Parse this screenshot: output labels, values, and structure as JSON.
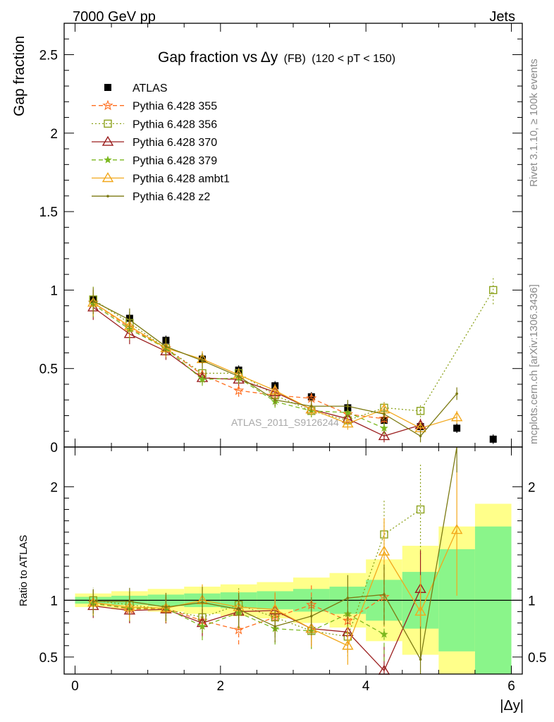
{
  "header": {
    "left": "7000 GeV pp",
    "right": "Jets"
  },
  "side": {
    "rivet": "Rivet 3.1.10, ≥ 100k events",
    "mcplots": "mcplots.cern.ch [arXiv:1306.3436]"
  },
  "watermark": "ATLAS_2011_S9126244",
  "chart_data": [
    {
      "type": "line",
      "title_main": "Gap fraction vs",
      "title_var": "Δy",
      "title_tag": "(FB)",
      "title_cut": "(120 < pT < 150)",
      "ylabel": "Gap fraction",
      "xlim": [
        -0.15,
        6.15
      ],
      "ylim": [
        0,
        2.7
      ],
      "yticks": [
        "0",
        "0.5",
        "1",
        "1.5",
        "2",
        "2.5"
      ],
      "x": [
        0.25,
        0.75,
        1.25,
        1.75,
        2.25,
        2.75,
        3.25,
        3.75,
        4.25,
        4.75,
        5.25,
        5.75
      ],
      "series": [
        {
          "name": "ATLAS",
          "color": "#000000",
          "marker": "square-filled",
          "dash": "none",
          "values": [
            0.94,
            0.82,
            0.68,
            0.56,
            0.49,
            0.39,
            0.32,
            0.25,
            0.17,
            0.13,
            0.12,
            0.05
          ]
        },
        {
          "name": "Pythia 6.428 355",
          "color": "#ff6e1f",
          "marker": "star",
          "dash": "dashed",
          "values": [
            0.92,
            0.76,
            0.63,
            0.46,
            0.36,
            0.33,
            0.31,
            0.21,
            0.18,
            null,
            null,
            null
          ]
        },
        {
          "name": "Pythia 6.428 356",
          "color": "#8ba11a",
          "marker": "square-open",
          "dash": "dotted",
          "values": [
            0.94,
            0.79,
            0.63,
            0.47,
            0.47,
            0.33,
            0.23,
            0.17,
            0.25,
            0.23,
            null,
            1.0
          ]
        },
        {
          "name": "Pythia 6.428 370",
          "color": "#9b1f1f",
          "marker": "triangle-open",
          "dash": "none",
          "values": [
            0.89,
            0.72,
            0.61,
            0.44,
            0.43,
            0.35,
            0.24,
            0.18,
            0.07,
            0.14,
            null,
            null
          ]
        },
        {
          "name": "Pythia 6.428 379",
          "color": "#7bb81f",
          "marker": "star-small",
          "dash": "dashed",
          "values": [
            0.91,
            0.75,
            0.63,
            0.43,
            0.44,
            0.29,
            0.23,
            0.22,
            0.12,
            null,
            null,
            null
          ]
        },
        {
          "name": "Pythia 6.428 ambt1",
          "color": "#f2a81c",
          "marker": "triangle-open",
          "dash": "none",
          "values": [
            0.92,
            0.77,
            0.63,
            0.56,
            0.46,
            0.36,
            0.24,
            0.15,
            0.24,
            0.12,
            0.19,
            null
          ]
        },
        {
          "name": "Pythia 6.428 z2",
          "color": "#7c7a12",
          "marker": "dot",
          "dash": "none",
          "values": [
            0.93,
            0.81,
            0.64,
            0.55,
            0.45,
            0.3,
            0.26,
            0.26,
            0.21,
            0.07,
            0.34,
            null
          ]
        }
      ]
    },
    {
      "type": "line",
      "ylabel": "Ratio to ATLAS",
      "xlabel": "|Δy|",
      "xlim": [
        -0.15,
        6.15
      ],
      "ylim": [
        0.35,
        2.35
      ],
      "xticks": [
        "0",
        "2",
        "4",
        "6"
      ],
      "yticks": [
        "0.5",
        "1",
        "2"
      ],
      "band_1sigma": [
        0.03,
        0.04,
        0.05,
        0.06,
        0.07,
        0.08,
        0.1,
        0.12,
        0.18,
        0.25,
        0.45,
        0.65
      ],
      "band_2sigma": [
        0.06,
        0.08,
        0.1,
        0.12,
        0.14,
        0.16,
        0.2,
        0.24,
        0.36,
        0.48,
        0.65,
        0.85
      ],
      "x": [
        0.25,
        0.75,
        1.25,
        1.75,
        2.25,
        2.75,
        3.25,
        3.75,
        4.25,
        4.75,
        5.25,
        5.75
      ],
      "series": [
        {
          "name": "Pythia 6.428 355",
          "values": [
            0.98,
            0.92,
            0.93,
            0.82,
            0.74,
            0.85,
            0.96,
            0.82,
            1.03,
            null,
            null,
            null
          ]
        },
        {
          "name": "Pythia 6.428 356",
          "values": [
            1.0,
            0.96,
            0.92,
            0.85,
            0.96,
            0.85,
            0.73,
            0.68,
            1.58,
            1.8,
            null,
            null
          ]
        },
        {
          "name": "Pythia 6.428 370",
          "values": [
            0.95,
            0.91,
            0.92,
            0.8,
            0.9,
            0.91,
            0.75,
            0.72,
            0.38,
            1.1,
            null,
            null
          ]
        },
        {
          "name": "Pythia 6.428 379",
          "values": [
            0.97,
            0.93,
            0.93,
            0.77,
            0.89,
            0.75,
            0.73,
            0.88,
            0.7,
            null,
            null,
            null
          ]
        },
        {
          "name": "Pythia 6.428 ambt1",
          "values": [
            0.98,
            0.94,
            0.93,
            1.0,
            0.94,
            0.92,
            0.75,
            0.6,
            1.43,
            0.9,
            1.62,
            null
          ]
        },
        {
          "name": "Pythia 6.428 z2",
          "values": [
            0.99,
            0.99,
            0.94,
            0.98,
            0.92,
            0.77,
            0.86,
            1.02,
            1.05,
            0.48,
            2.8,
            null
          ]
        }
      ]
    }
  ]
}
